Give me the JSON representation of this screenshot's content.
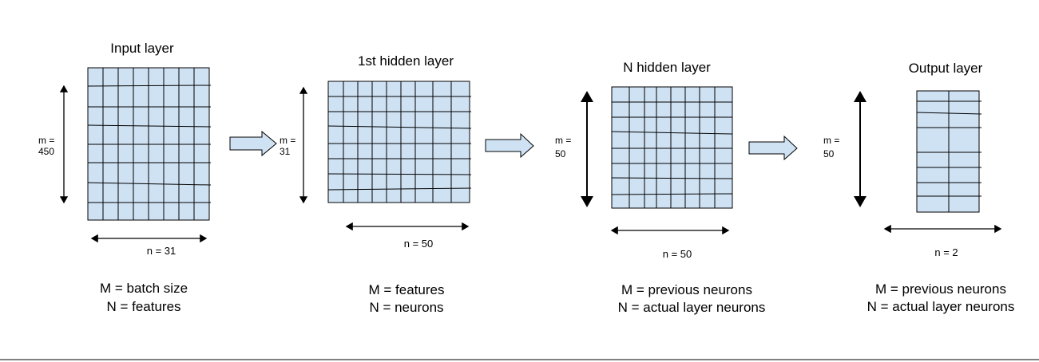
{
  "colors": {
    "cell_fill": "#cfe2f3",
    "grid_line": "#000000",
    "arrow_fill": "#cfe2f3"
  },
  "input_layer": {
    "title": "Input layer",
    "m_label_1": "m =",
    "m_label_2": "450",
    "n_label": "n = 31",
    "caption_1": "M = batch size",
    "caption_2": "N = features"
  },
  "hidden_layer_1": {
    "title": "1st hidden layer",
    "m_label_1": "m =",
    "m_label_2": "31",
    "n_label": "n = 50",
    "caption_1": "M = features",
    "caption_2": "N = neurons"
  },
  "hidden_layer_n": {
    "title": "N hidden layer",
    "m_label_1": "m =",
    "m_label_2": "50",
    "n_label": "n = 50",
    "caption_1": "M = previous neurons",
    "caption_2": "N = actual layer neurons"
  },
  "output_layer": {
    "title": "Output layer",
    "m_label_1": "m =",
    "m_label_2": "50",
    "n_label": "n = 2",
    "caption_1": "M = previous neurons",
    "caption_2": "N = actual layer neurons"
  }
}
